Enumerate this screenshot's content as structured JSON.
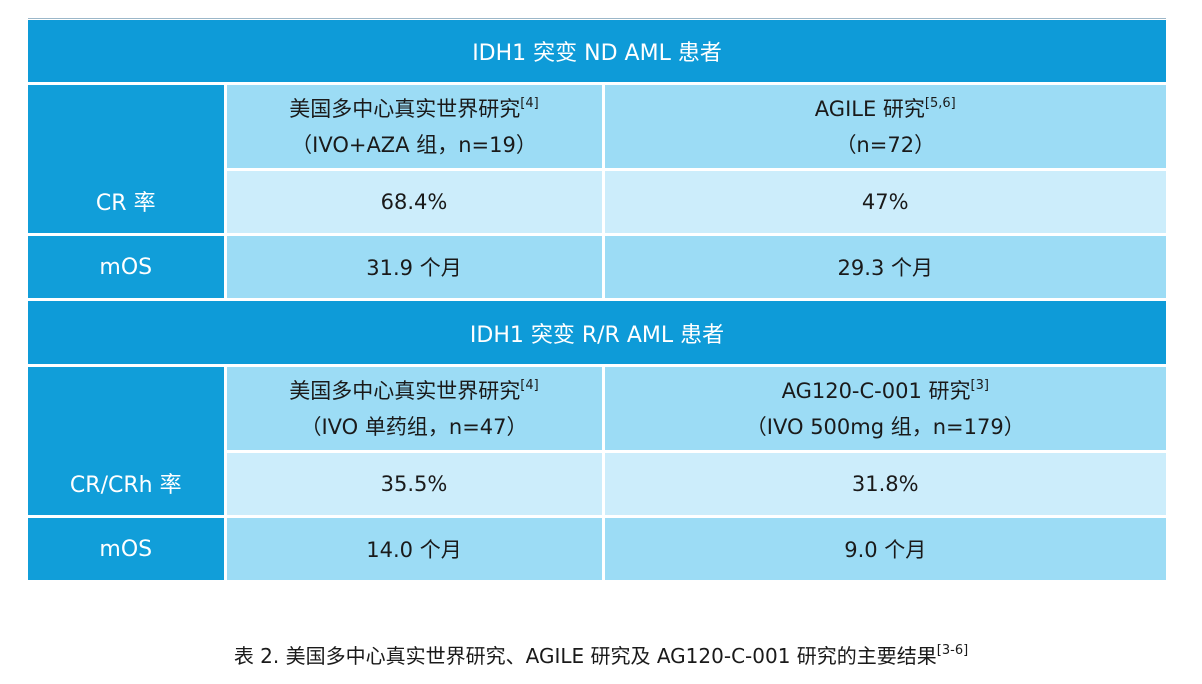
{
  "table": {
    "sections": [
      {
        "title": "IDH1 突变 ND AML 患者",
        "columns": [
          {
            "line1": "美国多中心真实世界研究",
            "ref": "[4]",
            "line2": "（IVO+AZA 组，n=19）"
          },
          {
            "line1": "AGILE 研究",
            "ref": "[5,6]",
            "line2": "（n=72）"
          }
        ],
        "rows": [
          {
            "label": "CR 率",
            "values": [
              "68.4%",
              "47%"
            ]
          },
          {
            "label": "mOS",
            "values": [
              "31.9 个月",
              "29.3 个月"
            ]
          }
        ]
      },
      {
        "title": "IDH1 突变 R/R AML 患者",
        "columns": [
          {
            "line1": "美国多中心真实世界研究",
            "ref": "[4]",
            "line2": "（IVO 单药组，n=47）"
          },
          {
            "line1": "AG120-C-001 研究",
            "ref": "[3]",
            "line2": "（IVO 500mg 组，n=179）"
          }
        ],
        "rows": [
          {
            "label": "CR/CRh 率",
            "values": [
              "35.5%",
              "31.8%"
            ]
          },
          {
            "label": "mOS",
            "values": [
              "14.0 个月",
              "9.0 个月"
            ]
          }
        ]
      }
    ]
  },
  "caption": {
    "text": "表 2. 美国多中心真实世界研究、AGILE 研究及 AG120-C-001 研究的主要结果",
    "ref": "[3-6]"
  },
  "colors": {
    "header_blue": "#0e9bd8",
    "light_cell": "#ccedfb",
    "mid_cell": "#9cdcf5"
  }
}
